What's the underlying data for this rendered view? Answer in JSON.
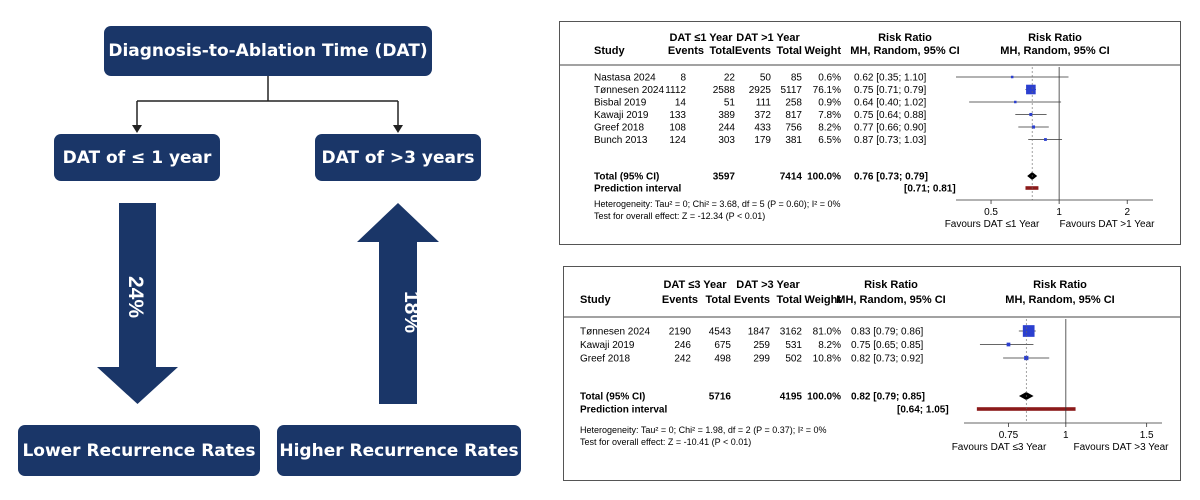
{
  "diagram": {
    "top_box": "Diagnosis-to-Ablation Time (DAT)",
    "left_box": "DAT of ≤ 1 year",
    "right_box": "DAT of >3 years",
    "left_pct": "24%",
    "right_pct": "18%",
    "bottom_left": "Lower Recurrence Rates",
    "bottom_right": "Higher Recurrence Rates",
    "navy_color": "#1a3668"
  },
  "forest1": {
    "group1_label": "DAT ≤1 Year",
    "group2_label": "DAT >1 Year",
    "col_study": "Study",
    "col_events": "Events",
    "col_total": "Total",
    "col_weight": "Weight",
    "col_rr_title": "Risk Ratio",
    "col_rr_sub": "MH, Random, 95% CI",
    "plot_rr_title": "Risk Ratio",
    "plot_rr_sub": "MH, Random, 95% CI",
    "rows": [
      {
        "study": "Nastasa 2024",
        "e1": "8",
        "t1": "22",
        "e2": "50",
        "t2": "85",
        "w": "0.6%",
        "rr": "0.62 [0.35; 1.10]",
        "est": 0.62,
        "lo": 0.35,
        "hi": 1.1,
        "wt": 0.6
      },
      {
        "study": "Tønnesen 2024",
        "e1": "1112",
        "t1": "2588",
        "e2": "2925",
        "t2": "5117",
        "w": "76.1%",
        "rr": "0.75 [0.71; 0.79]",
        "est": 0.75,
        "lo": 0.71,
        "hi": 0.79,
        "wt": 76.1
      },
      {
        "study": "Bisbal 2019",
        "e1": "14",
        "t1": "51",
        "e2": "111",
        "t2": "258",
        "w": "0.9%",
        "rr": "0.64 [0.40; 1.02]",
        "est": 0.64,
        "lo": 0.4,
        "hi": 1.02,
        "wt": 0.9
      },
      {
        "study": "Kawaji 2019",
        "e1": "133",
        "t1": "389",
        "e2": "372",
        "t2": "817",
        "w": "7.8%",
        "rr": "0.75 [0.64; 0.88]",
        "est": 0.75,
        "lo": 0.64,
        "hi": 0.88,
        "wt": 7.8
      },
      {
        "study": "Greef 2018",
        "e1": "108",
        "t1": "244",
        "e2": "433",
        "t2": "756",
        "w": "8.2%",
        "rr": "0.77 [0.66; 0.90]",
        "est": 0.77,
        "lo": 0.66,
        "hi": 0.9,
        "wt": 8.2
      },
      {
        "study": "Bunch 2013",
        "e1": "124",
        "t1": "303",
        "e2": "179",
        "t2": "381",
        "w": "6.5%",
        "rr": "0.87 [0.73; 1.03]",
        "est": 0.87,
        "lo": 0.73,
        "hi": 1.03,
        "wt": 6.5
      }
    ],
    "total": {
      "label": "Total (95% CI)",
      "t1": "3597",
      "t2": "7414",
      "w": "100.0%",
      "rr": "0.76 [0.73; 0.79]",
      "est": 0.76,
      "lo": 0.73,
      "hi": 0.79
    },
    "prediction": {
      "label": "Prediction interval",
      "rr": "[0.71; 0.81]",
      "lo": 0.71,
      "hi": 0.81
    },
    "heterogeneity": "Heterogeneity: Tau² = 0; Chi² = 3.68, df = 5 (P = 0.60); I² = 0%",
    "overall": "Test for overall effect: Z = -12.34 (P < 0.01)",
    "ticks": [
      {
        "v": 0.5,
        "label": "0.5"
      },
      {
        "v": 1,
        "label": "1"
      },
      {
        "v": 2,
        "label": "2"
      }
    ],
    "favours_left": "Favours DAT ≤1 Year",
    "favours_right": "Favours DAT >1 Year"
  },
  "forest2": {
    "group1_label": "DAT ≤3 Year",
    "group2_label": "DAT >3 Year",
    "col_study": "Study",
    "col_events": "Events",
    "col_total": "Total",
    "col_weight": "Weight",
    "col_rr_title": "Risk Ratio",
    "col_rr_sub": "MH, Random, 95% CI",
    "plot_rr_title": "Risk Ratio",
    "plot_rr_sub": "MH, Random, 95% CI",
    "rows": [
      {
        "study": "Tønnesen 2024",
        "e1": "2190",
        "t1": "4543",
        "e2": "1847",
        "t2": "3162",
        "w": "81.0%",
        "rr": "0.83 [0.79; 0.86]",
        "est": 0.83,
        "lo": 0.79,
        "hi": 0.86,
        "wt": 81.0
      },
      {
        "study": "Kawaji 2019",
        "e1": "246",
        "t1": "675",
        "e2": "259",
        "t2": "531",
        "w": "8.2%",
        "rr": "0.75 [0.65; 0.85]",
        "est": 0.75,
        "lo": 0.65,
        "hi": 0.85,
        "wt": 8.2
      },
      {
        "study": "Greef 2018",
        "e1": "242",
        "t1": "498",
        "e2": "299",
        "t2": "502",
        "w": "10.8%",
        "rr": "0.82 [0.73; 0.92]",
        "est": 0.82,
        "lo": 0.73,
        "hi": 0.92,
        "wt": 10.8
      }
    ],
    "total": {
      "label": "Total (95% CI)",
      "t1": "5716",
      "t2": "4195",
      "w": "100.0%",
      "rr": "0.82 [0.79; 0.85]",
      "est": 0.82,
      "lo": 0.79,
      "hi": 0.85
    },
    "prediction": {
      "label": "Prediction interval",
      "rr": "[0.64; 1.05]",
      "lo": 0.64,
      "hi": 1.05
    },
    "heterogeneity": "Heterogeneity: Tau² = 0; Chi² = 1.98, df = 2 (P = 0.37); I² = 0%",
    "overall": "Test for overall effect: Z = -10.41 (P < 0.01)",
    "ticks": [
      {
        "v": 0.75,
        "label": "0.75"
      },
      {
        "v": 1,
        "label": "1"
      },
      {
        "v": 1.5,
        "label": "1.5"
      }
    ],
    "favours_left": "Favours DAT ≤3 Year",
    "favours_right": "Favours DAT >3 Year"
  }
}
